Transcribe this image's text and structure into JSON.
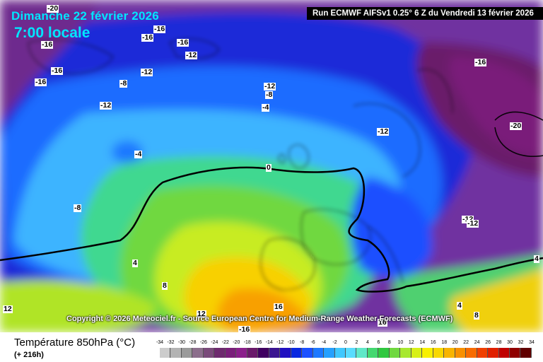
{
  "header": {
    "date": "Dimanche 22 février 2026",
    "time": "7:00 locale",
    "run": "Run ECMWF AIFSv1 0.25° 6 Z du Vendredi 13 février 2026"
  },
  "copyright": "Copyright © 2026 Meteociel.fr - Source European Centre for Medium-Range Weather Forecasts (ECMWF)",
  "footer": {
    "title": "Température 850hPa (°C)",
    "subtitle": "(+ 216h)"
  },
  "legend": {
    "ticks": [
      "-34",
      "-32",
      "-30",
      "-28",
      "-26",
      "-24",
      "-22",
      "-20",
      "-18",
      "-16",
      "-14",
      "-12",
      "-10",
      "-8",
      "-6",
      "-4",
      "-2",
      "0",
      "2",
      "4",
      "6",
      "8",
      "10",
      "12",
      "14",
      "16",
      "18",
      "20",
      "22",
      "24",
      "26",
      "28",
      "30",
      "32",
      "34"
    ],
    "colors": [
      "#cccccc",
      "#b3b3b3",
      "#9a9a9a",
      "#8c6e8c",
      "#7a4a7a",
      "#6e2a6e",
      "#7a1f7a",
      "#8b1f8b",
      "#6a1a6a",
      "#400060",
      "#3a1590",
      "#2010c0",
      "#0a28e0",
      "#1c50ff",
      "#1e78ff",
      "#26a0ff",
      "#40c8ff",
      "#5adcff",
      "#60e8c8",
      "#44d870",
      "#30c840",
      "#70d840",
      "#a8e830",
      "#d8f018",
      "#f8f000",
      "#f8d800",
      "#f8b400",
      "#f89000",
      "#f86c00",
      "#f04000",
      "#e02000",
      "#c00000",
      "#900000",
      "#600000"
    ]
  },
  "contour_labels": [
    "-20",
    "-16",
    "-16",
    "-16",
    "-12",
    "-16",
    "-16",
    "-16",
    "-12",
    "-8",
    "-12",
    "-12",
    "-8",
    "-4",
    "-16",
    "-12",
    "-20",
    "-4",
    "0",
    "-8",
    "-12",
    "-12",
    "4",
    "8",
    "12",
    "12",
    "16",
    "-16",
    "4",
    "8",
    "4",
    "16"
  ]
}
